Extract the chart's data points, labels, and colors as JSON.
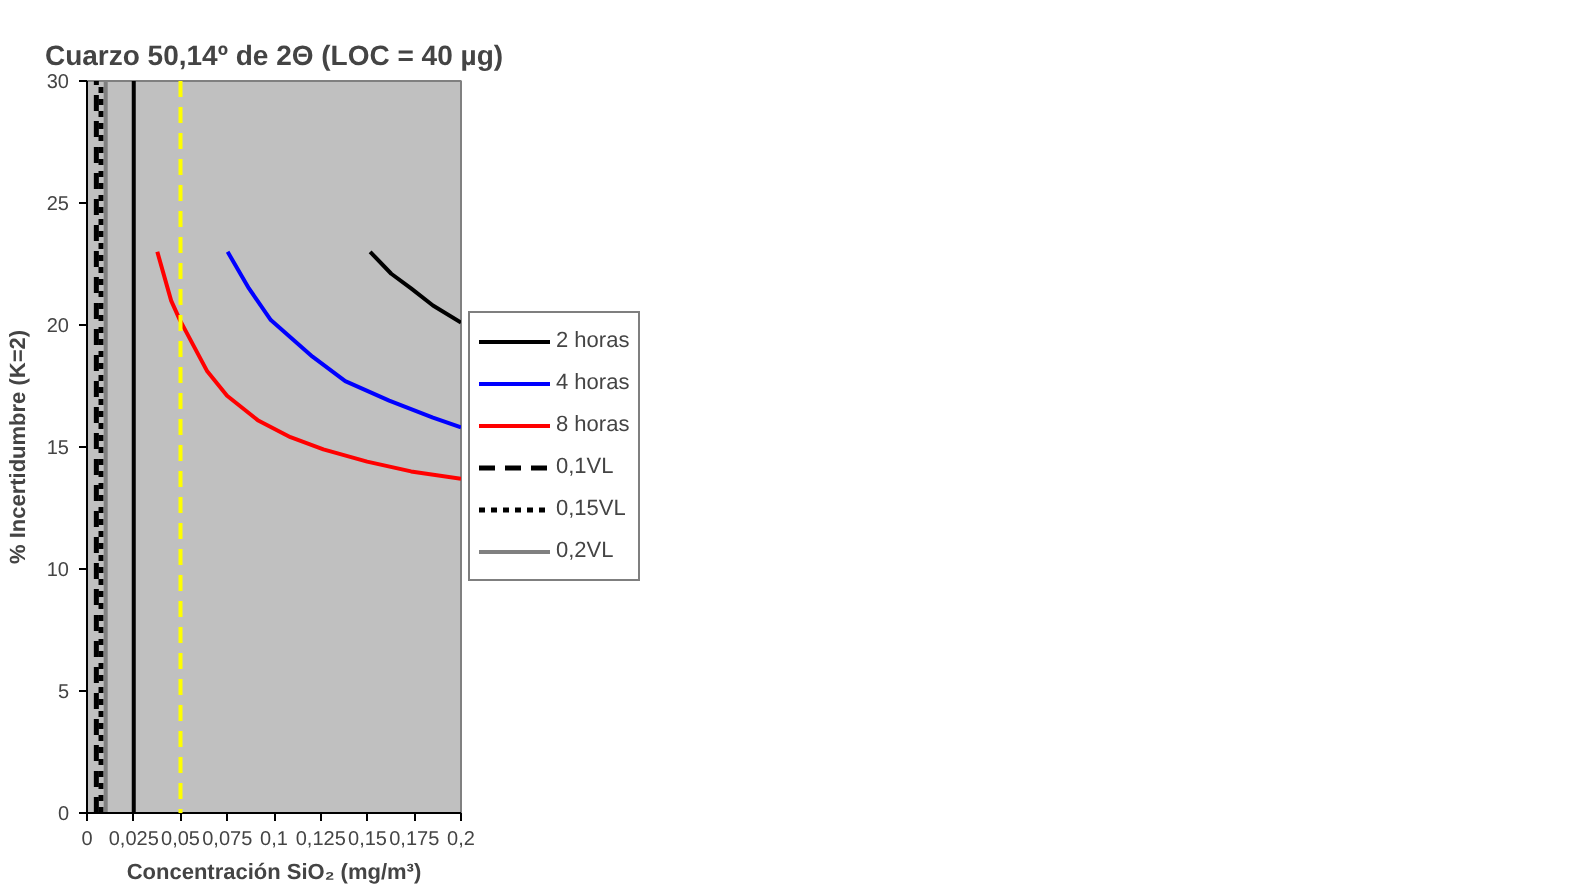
{
  "chart_data": {
    "type": "line",
    "title": "Cuarzo 50,14º de 2Θ (LOC = 40 µg)",
    "xlabel": "Concentración SiO₂ (mg/m³)",
    "ylabel": "% Incertidumbre (K=2)",
    "xlim": [
      0,
      0.2
    ],
    "ylim": [
      0,
      30
    ],
    "xticks": [
      {
        "value": 0,
        "label": "0"
      },
      {
        "value": 0.025,
        "label": "0,025"
      },
      {
        "value": 0.05,
        "label": "0,05"
      },
      {
        "value": 0.075,
        "label": "0,075"
      },
      {
        "value": 0.1,
        "label": "0,1"
      },
      {
        "value": 0.125,
        "label": "0,125"
      },
      {
        "value": 0.15,
        "label": "0,15"
      },
      {
        "value": 0.175,
        "label": "0,175"
      },
      {
        "value": 0.2,
        "label": "0,2"
      }
    ],
    "yticks": [
      0,
      5,
      10,
      15,
      20,
      25,
      30
    ],
    "grid": false,
    "legend": "right",
    "series": [
      {
        "name": "2 horas",
        "color": "#000000",
        "x": [
          0.1514,
          0.1627,
          0.1733,
          0.185,
          0.2
        ],
        "values": [
          23.0,
          22.1,
          21.5,
          20.8,
          20.1
        ]
      },
      {
        "name": "4 horas",
        "color": "#0000ff",
        "x": [
          0.0752,
          0.0866,
          0.0983,
          0.1206,
          0.1381,
          0.1616,
          0.185,
          0.2
        ],
        "values": [
          23.0,
          21.5,
          20.2,
          18.7,
          17.7,
          16.9,
          16.2,
          15.8
        ]
      },
      {
        "name": "8 horas",
        "color": "#ff0000",
        "x": [
          0.0376,
          0.045,
          0.0497,
          0.0643,
          0.0749,
          0.0913,
          0.1088,
          0.1264,
          0.1498,
          0.1733,
          0.2
        ],
        "values": [
          23.0,
          21.0,
          20.2,
          18.1,
          17.1,
          16.1,
          15.4,
          14.9,
          14.4,
          14.0,
          13.7
        ]
      },
      {
        "name": "0,1VL",
        "color": "#000000",
        "line_style": "dashed",
        "x": [
          0.005,
          0.005
        ],
        "values": [
          0,
          30
        ]
      },
      {
        "name": "0,15VL",
        "color": "#000000",
        "line_style": "dotted",
        "x": [
          0.0075,
          0.0075
        ],
        "values": [
          0,
          30
        ]
      },
      {
        "name": "0,2VL",
        "color": "#808080",
        "x": [
          0.01,
          0.01
        ],
        "values": [
          0,
          30
        ]
      }
    ],
    "ref_lines": [
      {
        "axis": "x",
        "value": 0.025,
        "color": "#000000",
        "line_style": "solid"
      },
      {
        "axis": "x",
        "value": 0.05,
        "color": "#ffff00",
        "line_style": "dashed"
      }
    ]
  }
}
